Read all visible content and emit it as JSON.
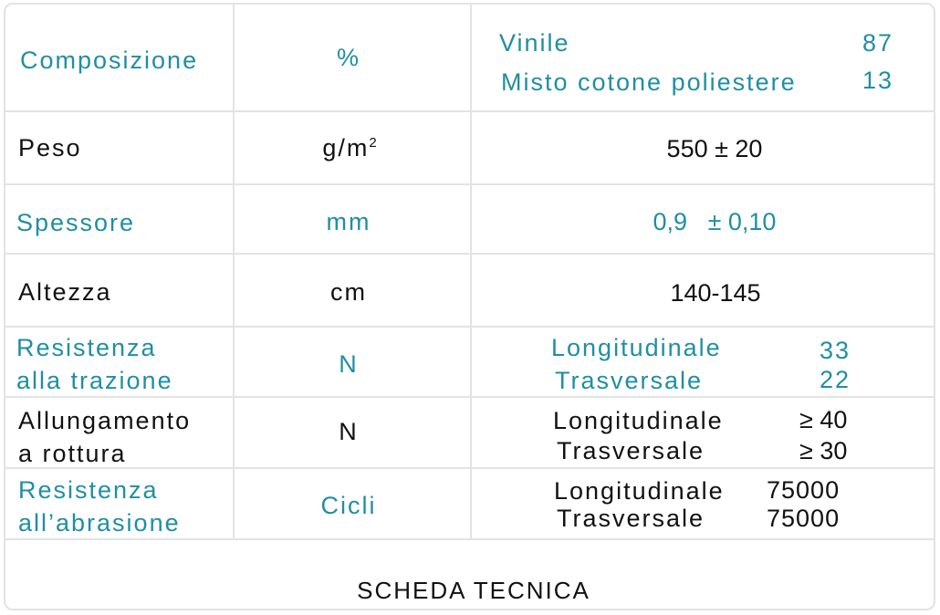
{
  "accent_color": "#1f8ea5",
  "rows": [
    {
      "label": "Composizione",
      "unit": "%",
      "values": [
        {
          "name": "Vinile",
          "value": "87"
        },
        {
          "name": "Misto cotone poliestere",
          "value": "13"
        }
      ]
    },
    {
      "label": "Peso",
      "unit": "g/m",
      "unit_sup": "2",
      "value": "550 ± 20"
    },
    {
      "label": "Spessore",
      "unit": "mm",
      "value": "0,9   ± 0,10"
    },
    {
      "label": "Altezza",
      "unit": "cm",
      "value": "140-145"
    },
    {
      "label_lines": [
        "Resistenza",
        "alla trazione"
      ],
      "unit": "N",
      "values": [
        {
          "name": "Longitudinale",
          "value": "33"
        },
        {
          "name": "Trasversale",
          "value": "22"
        }
      ]
    },
    {
      "label_lines": [
        "Allungamento",
        "a rottura"
      ],
      "unit": "N",
      "values": [
        {
          "name": "Longitudinale",
          "value": "≥ 40"
        },
        {
          "name": "Trasversale",
          "value": "≥ 30"
        }
      ]
    },
    {
      "label_lines": [
        "Resistenza",
        "all’abrasione"
      ],
      "unit": "Cicli",
      "values": [
        {
          "name": "Longitudinale",
          "value": "75000"
        },
        {
          "name": "Trasversale",
          "value": "75000"
        }
      ]
    }
  ],
  "footer": "SCHEDA TECNICA"
}
